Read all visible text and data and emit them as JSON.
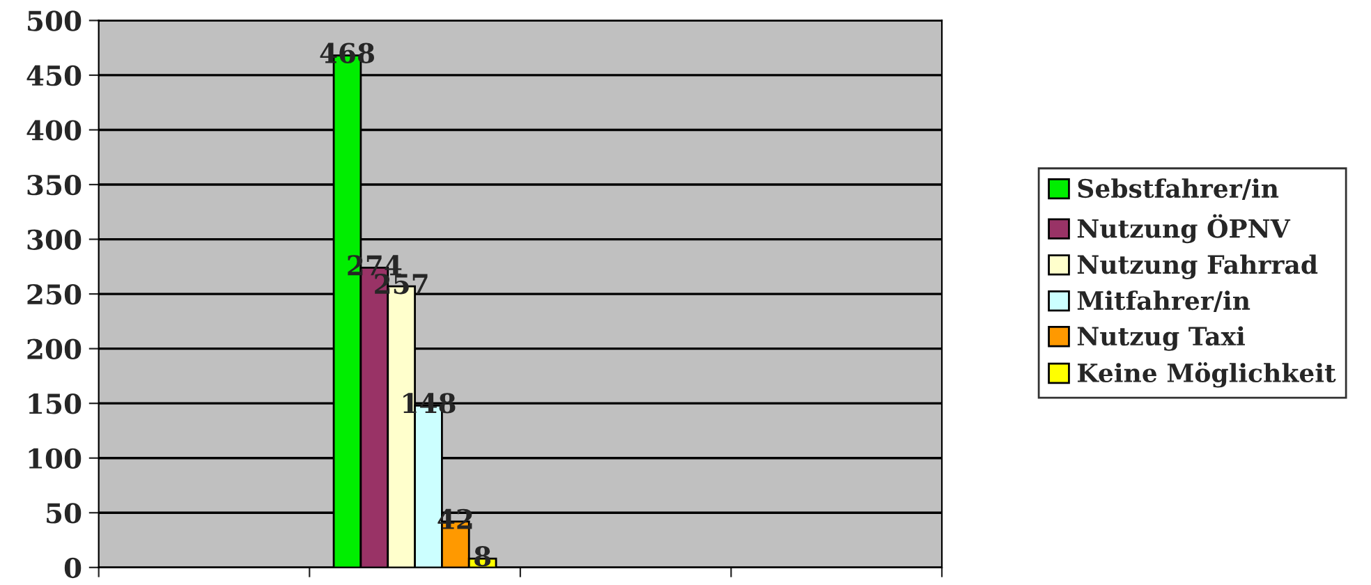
{
  "chart_data": {
    "type": "bar",
    "categories": [
      null,
      null,
      null,
      null
    ],
    "series": [
      {
        "name": "Sebstfahrer/in",
        "color": "#00ee00",
        "values": [
          null,
          468,
          null,
          null
        ]
      },
      {
        "name": "Nutzung ÖPNV",
        "color": "#993366",
        "values": [
          null,
          274,
          null,
          null
        ]
      },
      {
        "name": "Nutzung Fahrrad",
        "color": "#ffffcc",
        "values": [
          null,
          257,
          null,
          null
        ]
      },
      {
        "name": "Mitfahrer/in",
        "color": "#ccffff",
        "values": [
          null,
          148,
          null,
          null
        ]
      },
      {
        "name": "Nutzug Taxi",
        "color": "#ff9900",
        "values": [
          null,
          42,
          null,
          null
        ]
      },
      {
        "name": "Keine Möglichkeit",
        "color": "#ffff00",
        "values": [
          null,
          8,
          null,
          null
        ]
      }
    ],
    "ylim": [
      0,
      500
    ],
    "yticks": [
      0,
      50,
      100,
      150,
      200,
      250,
      300,
      350,
      400,
      450,
      500
    ],
    "grid": "y",
    "legend": "right",
    "data_labels": true,
    "tick_labels": "y"
  }
}
